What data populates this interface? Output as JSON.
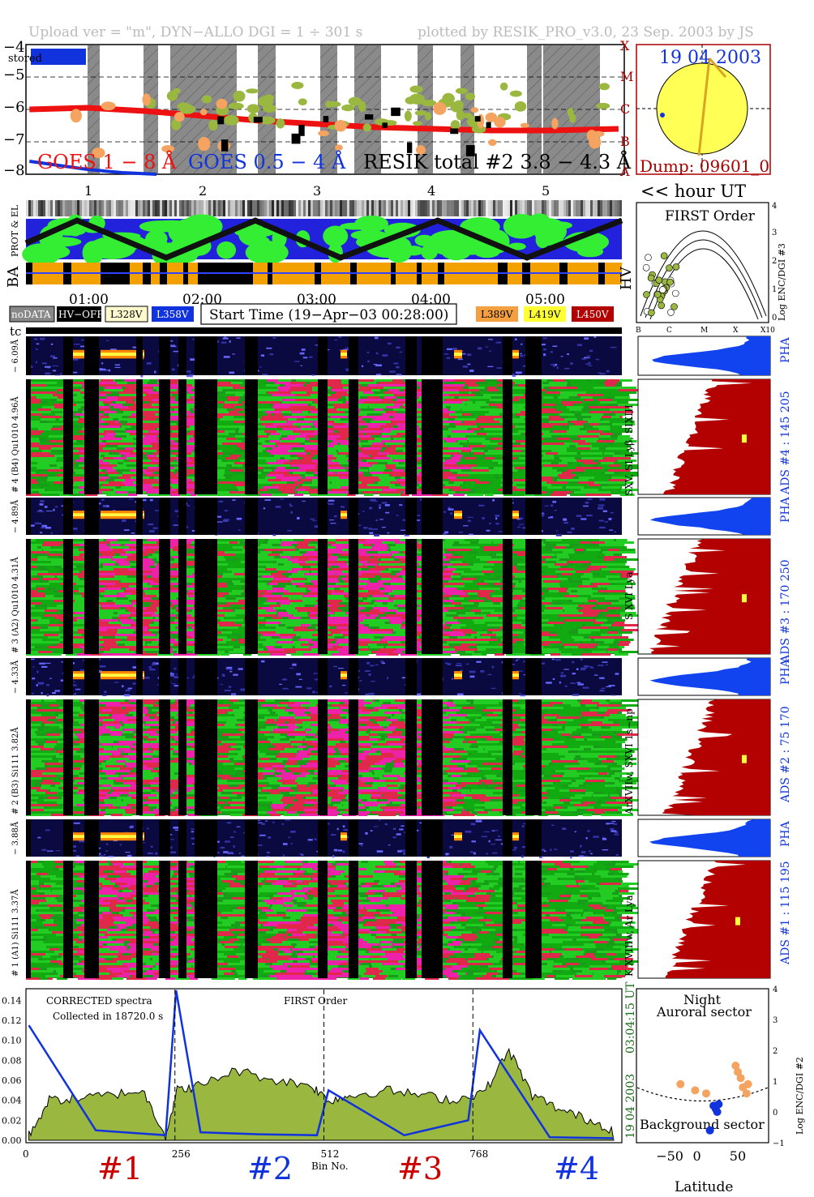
{
  "header": {
    "upload": "Upload ver = \"m\", DYN−ALLO DGI =   1 ÷ 301 s",
    "plotted": "plotted by RESIK_PRO_v3.0, 23 Sep. 2003 by JS"
  },
  "goes_panel": {
    "yticks": [
      "−4",
      "−5",
      "−6",
      "−7",
      "−8"
    ],
    "classes": [
      "X",
      "M",
      "C",
      "B",
      "A"
    ],
    "stored_label": "stored",
    "legend_goes_long": "GOES 1 − 8 Å",
    "legend_goes_short": "GOES 0.5 − 4 Å",
    "legend_resik": "RESIK total #2  3.8 − 4.3 Å"
  },
  "sun_panel": {
    "date": "19 04 2003",
    "dump": "Dump: 09601_0"
  },
  "hour_axis": {
    "hours": [
      "1",
      "2",
      "3",
      "4",
      "5"
    ],
    "label": "<< hour UT",
    "times": [
      "01:00",
      "02:00",
      "03:00",
      "04:00",
      "05:00"
    ]
  },
  "orbit_panel": {
    "prot_label": "PROT & EL",
    "ba_label": "BA",
    "hv_label": "HV"
  },
  "hv_panel": {
    "title": "FIRST Order",
    "ylabel": "Log ENC/DGI #3",
    "yticks": [
      "4",
      "3",
      "2",
      "1",
      "0"
    ],
    "xticks": [
      "B",
      "C",
      "M",
      "X",
      "X10"
    ]
  },
  "legend_row": {
    "nodata": "noDATA",
    "hvoff": "HV−OFF",
    "l328": "L328V",
    "l358": "L358V",
    "start_time": "Start Time (19−Apr−03 00:28:00)",
    "l389": "L389V",
    "l419": "L419V",
    "l450": "L450V",
    "tc": "tc"
  },
  "channels": [
    {
      "pha_label": "− 6.09Å",
      "spec_label": "# 4 (B4) Qu1010 4.96Å",
      "side_label": "SXV, SI Lyβ, SIXIII",
      "ads": "ADS #4 :   145 205",
      "pha": "PHA"
    },
    {
      "pha_label": "− 4.89Å",
      "spec_label": "# 3 (A2) Qu1010  4.31Å",
      "side_label": "S XVI Lya",
      "ads": "ADS #3 :   170 250",
      "pha": "PHA"
    },
    {
      "pha_label": "− 4.33Å",
      "spec_label": "# 2 (B3) Si111  3.82Å",
      "side_label": "ArXVIIw, SXVI 1s−np",
      "ads": "ADS #2 :   75 170",
      "pha": "PHA"
    },
    {
      "pha_label": "− 3.88Å",
      "spec_label": "# 1 (A1) Si111  3.37Å",
      "side_label": "K XVIIIw, Ar Lya",
      "ads": "ADS #1 :   115 195",
      "pha": "PHA"
    }
  ],
  "spectrum_panel": {
    "corrected": "CORRECTED spectra",
    "collected": "Collected in 18720.0 s",
    "first_order": "FIRST Order",
    "time_label": "03:04:15 UT",
    "date_label": "19 04 2003",
    "xlabel": "Bin No.",
    "xticks": [
      "0",
      "256",
      "512",
      "768"
    ],
    "yticks": [
      "0.14",
      "0.12",
      "0.10",
      "0.08",
      "0.06",
      "0.04",
      "0.02",
      "0.00"
    ],
    "channel_markers": [
      "#1",
      "#2",
      "#3",
      "#4"
    ]
  },
  "lat_panel": {
    "night": "Night",
    "auroral": "Auroral sector",
    "background": "Background sector",
    "xlabel": "Latitude",
    "xticks": [
      "−50",
      "0",
      "50"
    ],
    "yticks": [
      "4",
      "3",
      "2",
      "1",
      "0",
      "−1"
    ],
    "ylabel": "Log ENC/DGI #2"
  },
  "colors": {
    "red": "#ee1111",
    "blue": "#1133dd",
    "olive": "#9ab840",
    "orange": "#f4a460",
    "darkred": "#b30000",
    "pha_blue": "#1144ee",
    "spec_green": "#22cc22",
    "spec_red": "#e0294a",
    "spec_magenta": "#ee22aa"
  },
  "chart_data": [
    {
      "type": "line",
      "title": "",
      "ylabel": "",
      "yticks": [
        -4,
        -5,
        -6,
        -7,
        -8
      ],
      "ylim": [
        -8,
        -4
      ],
      "xlim": [
        0.47,
        5.65
      ],
      "series": [
        {
          "name": "GOES 1 − 8 Å",
          "x": [
            0.5,
            1.0,
            1.5,
            2.0,
            2.5,
            3.0,
            3.5,
            4.0,
            4.5,
            5.0,
            5.6
          ],
          "values": [
            -6.0,
            -5.95,
            -6.05,
            -6.2,
            -6.35,
            -6.45,
            -6.55,
            -6.6,
            -6.65,
            -6.65,
            -6.6
          ]
        },
        {
          "name": "GOES 0.5 − 4 Å",
          "x": [
            0.5,
            0.8,
            1.0,
            1.3,
            1.6
          ],
          "values": [
            -7.6,
            -7.75,
            -7.85,
            -7.95,
            -8.0
          ]
        }
      ]
    },
    {
      "type": "line",
      "title": "",
      "xlabel": "Bin No.",
      "xlim": [
        0,
        1024
      ],
      "ylim": [
        0,
        0.15
      ],
      "xticks": [
        0,
        256,
        512,
        768
      ],
      "yticks": [
        0.0,
        0.02,
        0.04,
        0.06,
        0.08,
        0.1,
        0.12,
        0.14
      ],
      "series": [
        {
          "name": "",
          "x": [
            5,
            40,
            90,
            140,
            200,
            240,
            260,
            300,
            360,
            430,
            490,
            520,
            560,
            620,
            680,
            740,
            790,
            830,
            870,
            920,
            970,
            1010
          ],
          "values": [
            0.005,
            0.04,
            0.042,
            0.045,
            0.05,
            0.005,
            0.05,
            0.055,
            0.07,
            0.06,
            0.055,
            0.04,
            0.045,
            0.05,
            0.045,
            0.04,
            0.05,
            0.09,
            0.045,
            0.03,
            0.02,
            0.01
          ]
        },
        {
          "name": "",
          "x": [
            5,
            120,
            240,
            258,
            300,
            400,
            500,
            520,
            650,
            760,
            780,
            900,
            1010
          ],
          "values": [
            0.115,
            0.01,
            0.005,
            0.15,
            0.008,
            0.006,
            0.005,
            0.05,
            0.005,
            0.02,
            0.11,
            0.003,
            0.002
          ]
        }
      ]
    },
    {
      "type": "scatter",
      "title": "",
      "xlabel": "Latitude",
      "ylabel": "Log ENC/DGI #2",
      "xlim": [
        -90,
        90
      ],
      "ylim": [
        -1,
        4
      ],
      "xticks": [
        -50,
        0,
        50
      ],
      "yticks": [
        -1,
        0,
        1,
        2,
        3,
        4
      ],
      "series": [
        {
          "name": "",
          "x": [
            -30,
            -10,
            5,
            45,
            48,
            52,
            55,
            60,
            62
          ],
          "values": [
            0.9,
            0.7,
            0.6,
            1.5,
            1.3,
            1.1,
            0.8,
            0.6,
            0.9
          ]
        },
        {
          "name": "",
          "x": [
            15,
            18,
            20,
            22,
            10
          ],
          "values": [
            0.2,
            0.1,
            0.0,
            0.25,
            -0.6
          ]
        }
      ]
    }
  ]
}
